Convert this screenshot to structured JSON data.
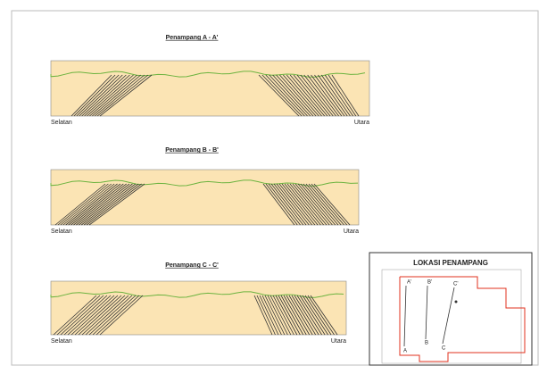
{
  "sections": [
    {
      "title": "Penampang A - A'",
      "left_label": "Selatan",
      "right_label": "Utara"
    },
    {
      "title": "Penampang B - B'",
      "left_label": "Selatan",
      "right_label": "Utara"
    },
    {
      "title": "Penampang C - C'",
      "left_label": "Selatan",
      "right_label": "Utara"
    }
  ],
  "inset": {
    "title": "LOKASI PENAMPANG",
    "lines": [
      {
        "start": "A",
        "end": "A'"
      },
      {
        "start": "B",
        "end": "B'"
      },
      {
        "start": "C",
        "end": "C'"
      }
    ]
  }
}
